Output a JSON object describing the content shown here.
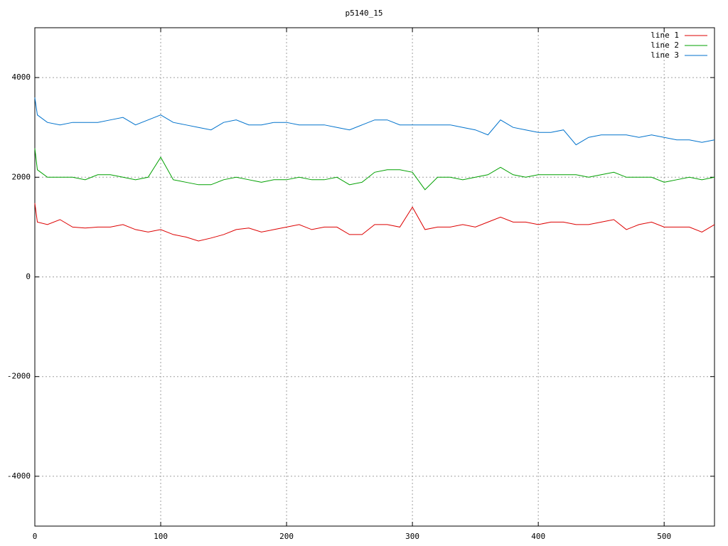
{
  "chart_data": {
    "type": "line",
    "title": "p5140_15",
    "x": [
      0,
      2,
      10,
      20,
      30,
      40,
      50,
      60,
      70,
      80,
      90,
      100,
      110,
      120,
      130,
      140,
      150,
      160,
      170,
      180,
      190,
      200,
      210,
      220,
      230,
      240,
      250,
      260,
      270,
      280,
      290,
      300,
      310,
      320,
      330,
      340,
      350,
      360,
      370,
      380,
      390,
      400,
      410,
      420,
      430,
      440,
      450,
      460,
      470,
      480,
      490,
      500,
      510,
      520,
      530,
      540
    ],
    "series": [
      {
        "name": "line 1",
        "color": "#dd0000",
        "values": [
          1480,
          1100,
          1050,
          1150,
          1000,
          980,
          1000,
          1000,
          1050,
          950,
          900,
          950,
          850,
          800,
          720,
          780,
          850,
          950,
          980,
          900,
          950,
          1000,
          1050,
          950,
          1000,
          1000,
          850,
          850,
          1050,
          1050,
          1000,
          1400,
          950,
          1000,
          1000,
          1050,
          1000,
          1100,
          1200,
          1100,
          1100,
          1050,
          1100,
          1100,
          1050,
          1050,
          1100,
          1150,
          950,
          1050,
          1100,
          1000,
          1000,
          1000,
          900,
          1050
        ]
      },
      {
        "name": "line 2",
        "color": "#00a000",
        "values": [
          2580,
          2150,
          2000,
          2000,
          2000,
          1950,
          2050,
          2050,
          2000,
          1950,
          2000,
          2400,
          1950,
          1900,
          1850,
          1850,
          1950,
          2000,
          1950,
          1900,
          1950,
          1950,
          2000,
          1950,
          1950,
          2000,
          1850,
          1900,
          2100,
          2150,
          2150,
          2100,
          1750,
          2000,
          2000,
          1950,
          2000,
          2050,
          2200,
          2050,
          2000,
          2050,
          2050,
          2050,
          2050,
          2000,
          2050,
          2100,
          2000,
          2000,
          2000,
          1900,
          1950,
          2000,
          1950,
          2000
        ]
      },
      {
        "name": "line 3",
        "color": "#0072cc",
        "values": [
          3600,
          3250,
          3100,
          3050,
          3100,
          3100,
          3100,
          3150,
          3200,
          3050,
          3150,
          3250,
          3100,
          3050,
          3000,
          2950,
          3100,
          3150,
          3050,
          3050,
          3100,
          3100,
          3050,
          3050,
          3050,
          3000,
          2950,
          3050,
          3150,
          3150,
          3050,
          3050,
          3050,
          3050,
          3050,
          3000,
          2950,
          2850,
          3150,
          3000,
          2950,
          2900,
          2900,
          2950,
          2650,
          2800,
          2850,
          2850,
          2850,
          2800,
          2850,
          2800,
          2750,
          2750,
          2700,
          2750
        ]
      }
    ],
    "xlim": [
      0,
      540
    ],
    "xticks": [
      0,
      100,
      200,
      300,
      400,
      500
    ],
    "ylim": [
      -5000,
      5000
    ],
    "yticks": [
      -4000,
      -2000,
      0,
      2000,
      4000
    ],
    "grid": true,
    "legend": "upper right"
  }
}
